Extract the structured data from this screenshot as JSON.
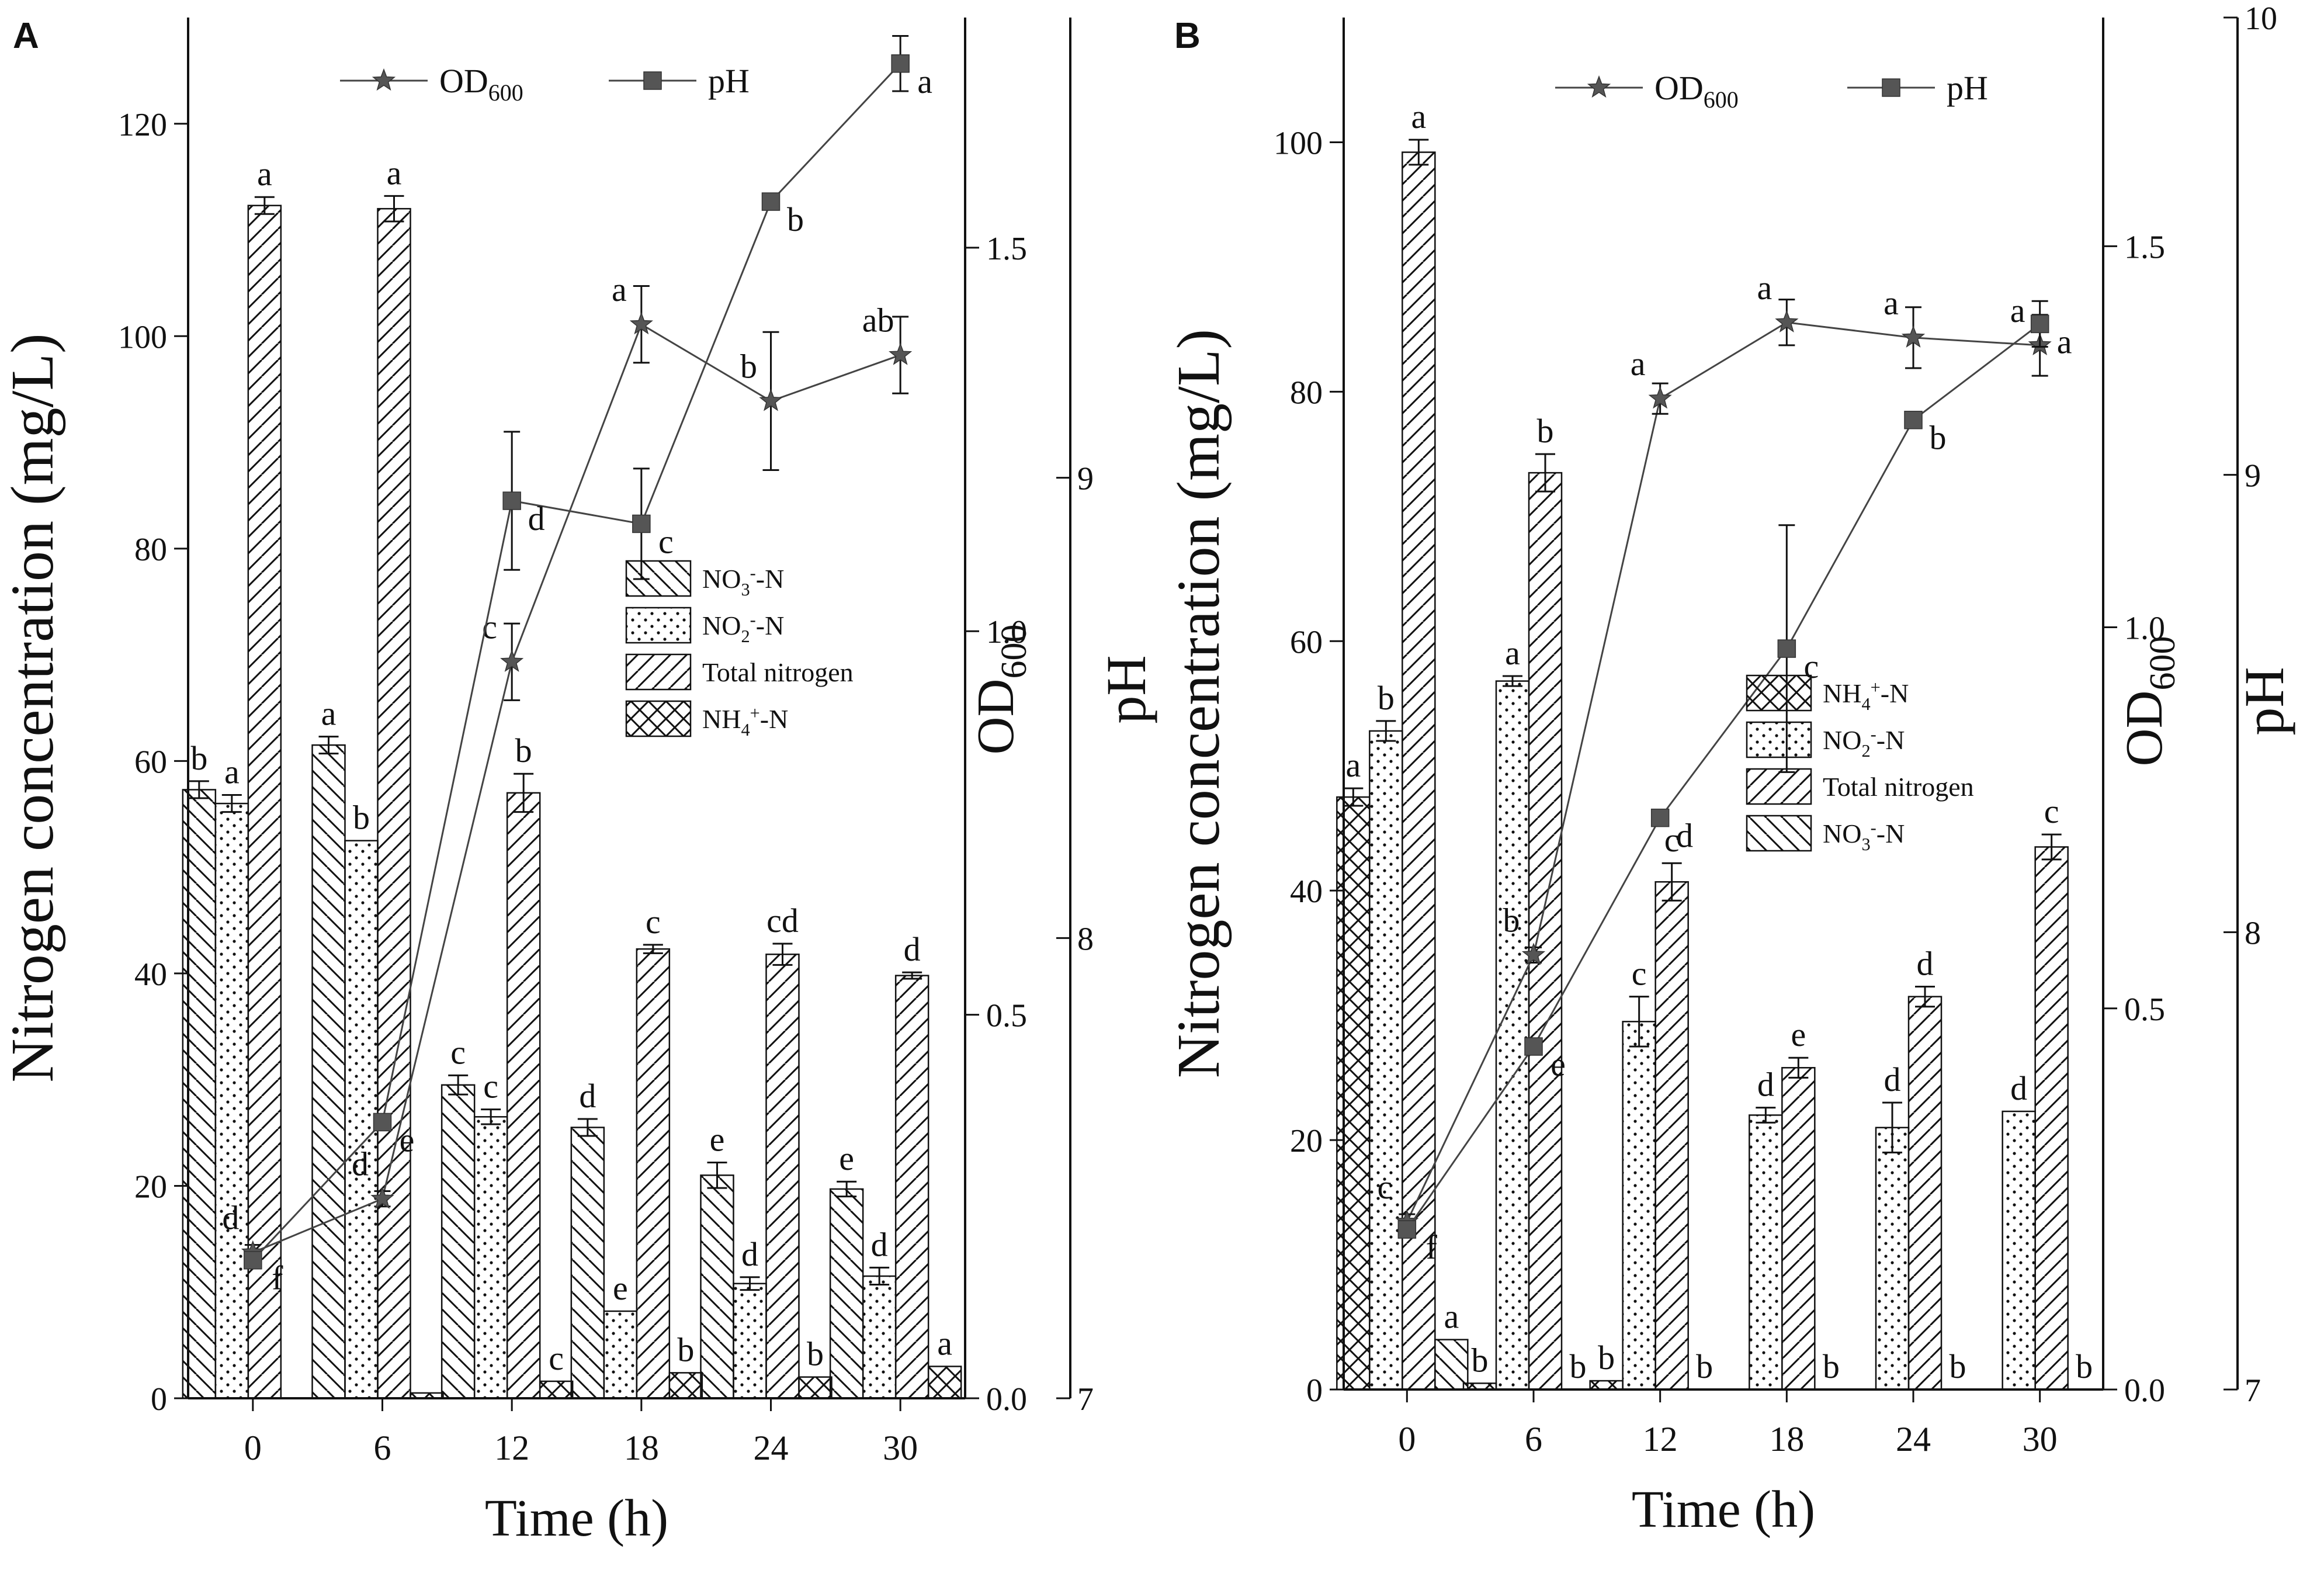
{
  "colors": {
    "ink": "#111111",
    "bar_fill": "#ffffff",
    "marker": "#555555"
  },
  "chart_data": [
    {
      "panel": "A",
      "type": "bar",
      "title": "",
      "xlabel": "Time (h)",
      "ylabel": "Nitrogen concentration (mg/L)",
      "y2label": "OD600",
      "y3label": "pH",
      "categories": [
        "0",
        "6",
        "12",
        "18",
        "24",
        "30"
      ],
      "ylim": [
        0,
        130
      ],
      "yticks": [
        "0",
        "20",
        "40",
        "60",
        "80",
        "100",
        "120"
      ],
      "y2lim": [
        0,
        1.8
      ],
      "y2ticks": [
        "0.0",
        "0.5",
        "1.0",
        "1.5"
      ],
      "y3lim": [
        7,
        10
      ],
      "y3ticks": [
        "7",
        "8",
        "9"
      ],
      "series": [
        {
          "name": "NO3--N",
          "label_main": "NO",
          "label_sub": "3",
          "label_sup": "-",
          "label_tail": "-N",
          "pattern": "back",
          "values": [
            57.3,
            61.5,
            29.5,
            25.5,
            21,
            19.7
          ],
          "errors": [
            0.8,
            0.8,
            0.9,
            0.8,
            1.2,
            0.7
          ],
          "letters": [
            "b",
            "a",
            "c",
            "d",
            "e",
            "e"
          ]
        },
        {
          "name": "NO2--N",
          "label_main": "NO",
          "label_sub": "2",
          "label_sup": "-",
          "label_tail": "-N",
          "pattern": "dots",
          "values": [
            56,
            52.5,
            26.5,
            8.2,
            10.8,
            11.5
          ],
          "errors": [
            0.8,
            0,
            0.7,
            0,
            0.6,
            0.8
          ],
          "letters": [
            "a",
            "b",
            "c",
            "e",
            "d",
            "d"
          ]
        },
        {
          "name": "Total nitrogen",
          "label_main": "Total nitrogen",
          "label_sub": "",
          "label_sup": "",
          "label_tail": "",
          "pattern": "fwd",
          "values": [
            112.3,
            112,
            57,
            42.3,
            41.8,
            39.8
          ],
          "errors": [
            0.8,
            1.2,
            1.8,
            0.4,
            1,
            0.3
          ],
          "letters": [
            "a",
            "a",
            "b",
            "c",
            "cd",
            "d"
          ]
        },
        {
          "name": "NH4+-N",
          "label_main": "NH",
          "label_sub": "4",
          "label_sup": "+",
          "label_tail": "-N",
          "pattern": "cross",
          "values": [
            0,
            0.5,
            1.6,
            2.4,
            2,
            3
          ],
          "errors": [
            0,
            0,
            0,
            0,
            0,
            0
          ],
          "letters": [
            "",
            "",
            "c",
            "b",
            "b",
            "a"
          ]
        }
      ],
      "lines": [
        {
          "name": "OD600",
          "label_main": "OD",
          "label_sub": "600",
          "marker": "star",
          "axis": "y2",
          "values": [
            0.19,
            0.26,
            0.96,
            1.4,
            1.3,
            1.36
          ],
          "errors": [
            0.01,
            0.01,
            0.05,
            0.05,
            0.09,
            0.05
          ],
          "letters": [
            "d",
            "d",
            "c",
            "a",
            "b",
            "ab"
          ]
        },
        {
          "name": "pH",
          "label_main": "pH",
          "label_sub": "",
          "marker": "square",
          "axis": "y3",
          "values": [
            7.3,
            7.6,
            8.95,
            8.9,
            9.6,
            9.9
          ],
          "errors": [
            0,
            0,
            0.15,
            0.12,
            0,
            0.06
          ],
          "letters": [
            "f",
            "e",
            "d",
            "c",
            "b",
            "a"
          ]
        }
      ]
    },
    {
      "panel": "B",
      "type": "bar",
      "title": "",
      "xlabel": "Time (h)",
      "ylabel": "Nitrogen concentration (mg/L)",
      "y2label": "OD600",
      "y3label": "pH",
      "categories": [
        "0",
        "6",
        "12",
        "18",
        "24",
        "30"
      ],
      "ylim": [
        0,
        110
      ],
      "yticks": [
        "0",
        "20",
        "40",
        "60",
        "80",
        "100"
      ],
      "y2lim": [
        0,
        1.8
      ],
      "y2ticks": [
        "0.0",
        "0.5",
        "1.0",
        "1.5"
      ],
      "y3lim": [
        7,
        10
      ],
      "y3ticks": [
        "7",
        "8",
        "9",
        "10"
      ],
      "series": [
        {
          "name": "NH4+-N",
          "label_main": "NH",
          "label_sub": "4",
          "label_sup": "+",
          "label_tail": "-N",
          "pattern": "cross",
          "values": [
            47.5,
            0.5,
            0.7,
            0,
            0,
            0
          ],
          "errors": [
            0.7,
            0,
            0,
            0,
            0,
            0
          ],
          "letters": [
            "a",
            "b",
            "b",
            "",
            "",
            ""
          ]
        },
        {
          "name": "NO2--N",
          "label_main": "NO",
          "label_sub": "2",
          "label_sup": "-",
          "label_tail": "-N",
          "pattern": "dots",
          "values": [
            52.8,
            56.8,
            29.5,
            22,
            21,
            22.3
          ],
          "errors": [
            0.8,
            0.4,
            2,
            0.6,
            2,
            0
          ],
          "letters": [
            "b",
            "a",
            "c",
            "d",
            "d",
            "d"
          ]
        },
        {
          "name": "Total nitrogen",
          "label_main": "Total nitrogen",
          "label_sub": "",
          "label_sup": "",
          "label_tail": "",
          "pattern": "fwd",
          "values": [
            99.2,
            73.5,
            40.7,
            25.8,
            31.5,
            43.5
          ],
          "errors": [
            1,
            1.5,
            1.5,
            0.8,
            0.8,
            1
          ],
          "letters": [
            "a",
            "b",
            "c",
            "e",
            "d",
            "c"
          ]
        },
        {
          "name": "NO3--N",
          "label_main": "NO",
          "label_sub": "3",
          "label_sup": "-",
          "label_tail": "-N",
          "pattern": "back",
          "values": [
            4,
            0,
            0,
            0,
            0,
            0
          ],
          "errors": [
            0,
            0,
            0,
            0,
            0,
            0
          ],
          "letters": [
            "a",
            "b",
            "b",
            "b",
            "b",
            "b"
          ]
        }
      ],
      "lines": [
        {
          "name": "OD600",
          "label_main": "OD",
          "label_sub": "600",
          "marker": "star",
          "axis": "y2",
          "values": [
            0.22,
            0.57,
            1.3,
            1.4,
            1.38,
            1.37
          ],
          "errors": [
            0.01,
            0.01,
            0.02,
            0.03,
            0.04,
            0.04
          ],
          "letters": [
            "c",
            "b",
            "a",
            "a",
            "a",
            "a"
          ]
        },
        {
          "name": "pH",
          "label_main": "pH",
          "label_sub": "",
          "marker": "square",
          "axis": "y3",
          "values": [
            7.35,
            7.75,
            8.25,
            8.62,
            9.12,
            9.33
          ],
          "errors": [
            0,
            0,
            0,
            0.27,
            0,
            0.05
          ],
          "letters": [
            "f",
            "e",
            "d",
            "c",
            "b",
            "a"
          ]
        }
      ]
    }
  ]
}
